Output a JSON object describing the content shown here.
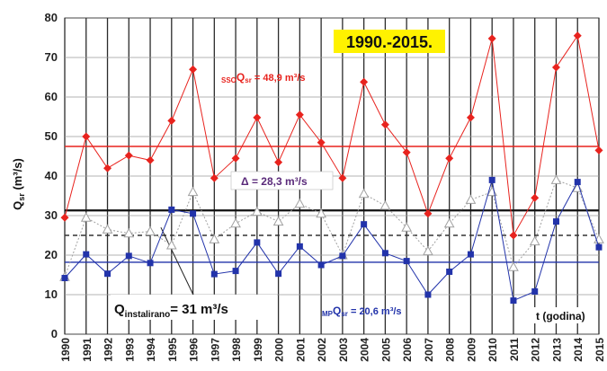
{
  "chart_data": {
    "type": "line",
    "title": "1990.-2015.",
    "ylabel": "Q",
    "ylabel_sub": "sr",
    "ylabel_unit": " (m³/s)",
    "xlabel": "t (godina)",
    "ylim": [
      0,
      80
    ],
    "yticks": [
      0,
      10,
      20,
      30,
      40,
      50,
      60,
      70,
      80
    ],
    "grid": true,
    "x": [
      "1990",
      "1991",
      "1992",
      "1993",
      "1994",
      "1995",
      "1996",
      "1997",
      "1998",
      "1999",
      "2000",
      "2001",
      "2002",
      "2003",
      "2004",
      "2005",
      "2006",
      "2007",
      "2008",
      "2009",
      "2010",
      "2011",
      "2012",
      "2013",
      "2014",
      "2015"
    ],
    "series": [
      {
        "style": "red-diamond",
        "color": "#e8231e",
        "values": [
          29.5,
          50,
          42,
          45.2,
          44,
          54,
          67,
          39.5,
          44.5,
          54.8,
          43.5,
          55.5,
          48.5,
          39.5,
          63.8,
          53,
          46,
          30.5,
          44.5,
          54.8,
          74.8,
          25,
          34.5,
          67.5,
          75.5,
          46.5
        ]
      },
      {
        "style": "grey-triangle-dotted",
        "color": "#a0a0a0",
        "values": [
          14.5,
          29.5,
          26.5,
          25.5,
          26,
          22.5,
          36,
          24,
          28,
          31,
          28.5,
          33,
          30.5,
          20,
          35.5,
          32.5,
          27,
          21,
          28,
          34,
          36,
          17,
          23.5,
          39,
          37,
          24
        ]
      },
      {
        "style": "blue-square",
        "color": "#2233aa",
        "values": [
          14.2,
          20.2,
          15.3,
          19.8,
          18,
          31.5,
          30.5,
          15.2,
          16,
          23.2,
          15.3,
          22.2,
          17.5,
          19.8,
          27.8,
          20.5,
          18.5,
          10,
          15.8,
          20.2,
          39,
          8.5,
          10.8,
          28.5,
          38.5,
          22
        ]
      }
    ],
    "reference_lines": [
      {
        "value": 47.5,
        "color": "#e8231e",
        "style": "solid"
      },
      {
        "value": 31.3,
        "color": "#111111",
        "style": "solid"
      },
      {
        "value": 25,
        "color": "#333333",
        "style": "dashed"
      },
      {
        "value": 18.2,
        "color": "#2233aa",
        "style": "solid"
      }
    ],
    "annotations": {
      "sso_prefix": "SSO",
      "sso_q": "Q",
      "sso_sub": "sr",
      "sso_value": " = 48,9 m³/s",
      "delta": "Δ = 28,3 m³/s",
      "inst_q": "Q",
      "inst_sub": "instalirano",
      "inst_value": "= 31 m³/s",
      "mp_prefix": "MP",
      "mp_q": "Q",
      "mp_sub": "sr",
      "mp_value": " = 20,6 m³/s"
    }
  }
}
